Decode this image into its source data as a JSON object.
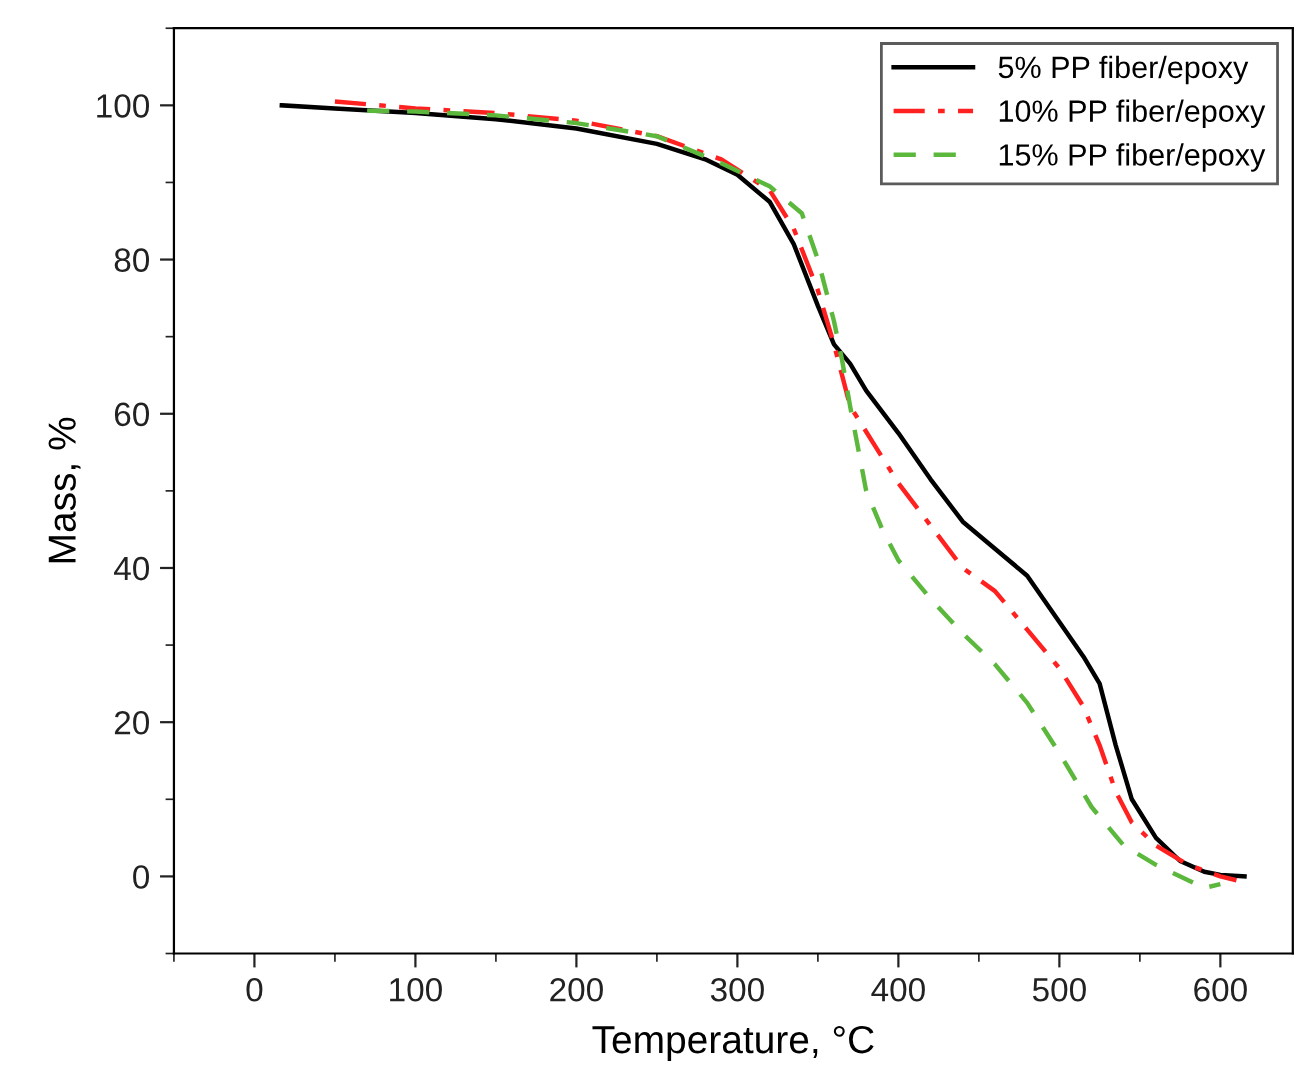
{
  "chart_data": {
    "type": "line",
    "xlabel": "Temperature, °C",
    "ylabel": "Mass, %",
    "xlim": [
      -50,
      645
    ],
    "ylim": [
      -10,
      110
    ],
    "xticks": [
      0,
      100,
      200,
      300,
      400,
      500,
      600
    ],
    "yticks": [
      0,
      20,
      40,
      60,
      80,
      100
    ],
    "grid": false,
    "legend": "top right",
    "series": [
      {
        "name": "5% PP fiber/epoxy",
        "color": "#000000",
        "line_style": "solid",
        "x": [
          17,
          50,
          100,
          150,
          200,
          250,
          280,
          300,
          320,
          335,
          350,
          360,
          370,
          380,
          400,
          420,
          440,
          460,
          480,
          500,
          515,
          525,
          535,
          545,
          560,
          575,
          590,
          600,
          615
        ],
        "values": [
          100,
          99.6,
          99,
          98.2,
          97,
          95,
          93,
          91,
          87.5,
          82,
          74,
          69,
          66.5,
          63,
          57.5,
          51.5,
          46,
          42.5,
          39,
          33,
          28.5,
          25,
          17,
          10,
          5,
          2,
          0.6,
          0.2,
          0
        ]
      },
      {
        "name": "10% PP fiber/epoxy",
        "color": "#ff2020",
        "line_style": "dashdot",
        "x": [
          50,
          100,
          150,
          200,
          250,
          290,
          320,
          335,
          350,
          360,
          370,
          385,
          400,
          420,
          440,
          460,
          480,
          500,
          515,
          525,
          535,
          545,
          560,
          580,
          600,
          610
        ],
        "values": [
          100.5,
          99.6,
          99,
          98,
          96,
          93,
          89,
          84,
          76,
          69,
          61,
          56,
          51,
          45.5,
          40,
          37,
          32,
          27,
          22,
          17,
          11,
          7,
          4,
          1.5,
          0,
          -0.5
        ]
      },
      {
        "name": "15% PP fiber/epoxy",
        "color": "#5cb83c",
        "line_style": "dashed",
        "x": [
          70,
          100,
          150,
          200,
          250,
          290,
          320,
          340,
          350,
          360,
          365,
          370,
          380,
          390,
          400,
          420,
          440,
          460,
          480,
          500,
          520,
          540,
          560,
          580,
          590,
          600
        ],
        "values": [
          99.3,
          99.2,
          98.7,
          97.7,
          96,
          92.5,
          89.5,
          86,
          80,
          72,
          67,
          61,
          50,
          45,
          41,
          36,
          31.5,
          27.5,
          22.5,
          16,
          9,
          4,
          1.5,
          -0.5,
          -1.5,
          -1
        ]
      }
    ]
  }
}
